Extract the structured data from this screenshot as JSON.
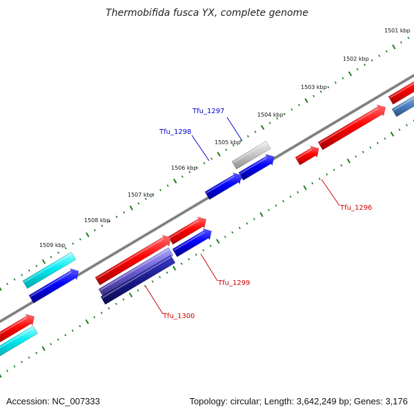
{
  "title": "Thermobifida fusca YX, complete genome",
  "footer": {
    "accession": "Accession: NC_007333",
    "summary": "Topology: circular; Length: 3,642,249 bp; Genes: 3,176"
  },
  "ruler_labels": [
    "1501 kbp",
    "1502 kbp",
    "1503 kbp",
    "1504 kbp",
    "1505 kbp",
    "1506 kbp",
    "1507 kbp",
    "1508 kbp",
    "1509 kbp"
  ],
  "genes": [
    {
      "label": "Tfu_1296",
      "color": "#cc0000"
    },
    {
      "label": "Tfu_1297",
      "color": "#0000cc"
    },
    {
      "label": "Tfu_1298",
      "color": "#0000cc"
    },
    {
      "label": "Tfu_1299",
      "color": "#cc0000"
    },
    {
      "label": "Tfu_1300",
      "color": "#cc0000"
    }
  ],
  "colors": {
    "forward_cds": "#ff0000",
    "reverse_cds": "#0000ff",
    "rna": "#00e5ee",
    "other": "#c0c0c0",
    "backbone": "#7a7a7a",
    "ticks": "#1a7a1a"
  }
}
